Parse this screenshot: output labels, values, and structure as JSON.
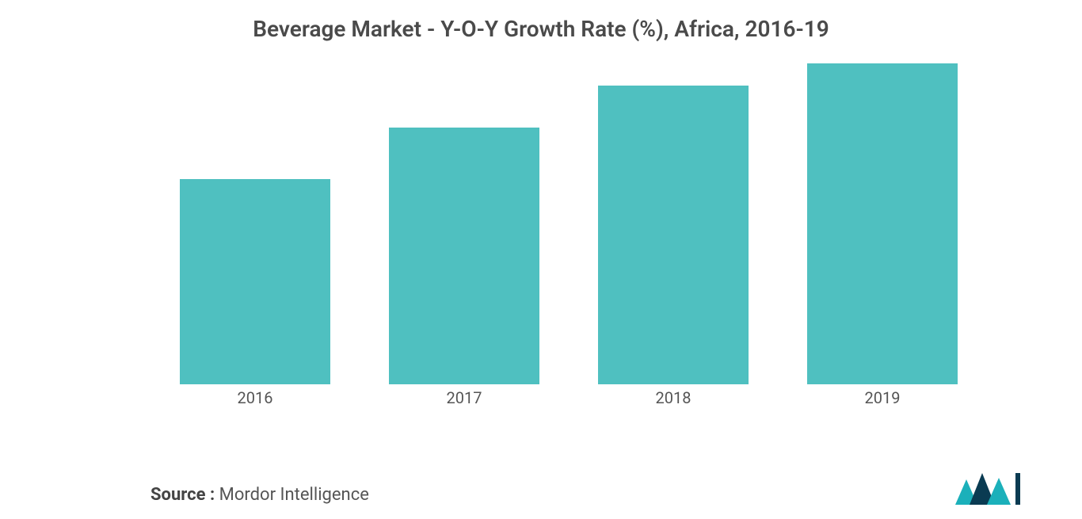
{
  "chart": {
    "type": "bar",
    "title": "Beverage Market - Y-O-Y Growth Rate (%), Africa, 2016-19",
    "title_fontsize": 28,
    "title_color": "#4a4a4a",
    "background_color": "#ffffff",
    "categories": [
      "2016",
      "2017",
      "2018",
      "2019"
    ],
    "values": [
      64,
      80,
      93,
      100
    ],
    "ylim": [
      0,
      100
    ],
    "bar_colors": [
      "#4fc0c0",
      "#4fc0c0",
      "#4fc0c0",
      "#4fc0c0"
    ],
    "bar_width": 0.72,
    "x_label_fontsize": 20,
    "x_label_color": "#555555",
    "show_y_axis": false,
    "show_grid": false
  },
  "source": {
    "label": "Source :",
    "value": "Mordor Intelligence",
    "label_fontsize": 22,
    "label_color": "#444444"
  },
  "logo": {
    "name": "mordor-intelligence-logo",
    "fill_primary": "#1bb0ba",
    "fill_secondary": "#0a3b52"
  }
}
